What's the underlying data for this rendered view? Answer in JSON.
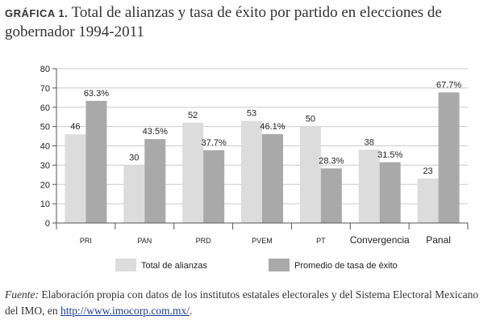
{
  "title_label": "GRÁFICA 1.",
  "title_text": "Total de alianzas y tasa de éxito por partido en elecciones de gobernador 1994-2011",
  "source": {
    "label": "Fuente:",
    "text_before": "Elaboración propia con datos de los institutos estatales electorales y del Sistema Electoral Mexicano del",
    "abbr": "IMO",
    "text_mid": ", en",
    "url": "http://www.imocorp.com.mx/",
    "text_after": "."
  },
  "colors": {
    "series1": "#dcdcdc",
    "series2": "#a9a9a9",
    "axis": "#555555",
    "grid": "#cccccc"
  },
  "chart_data": {
    "type": "bar",
    "categories": [
      "PRI",
      "PAN",
      "PRD",
      "PVEM",
      "PT",
      "Convergencia",
      "Panal"
    ],
    "series": [
      {
        "name": "Total de alianzas",
        "values": [
          46,
          30,
          52,
          53,
          50,
          38,
          23
        ],
        "labels": [
          "46",
          "30",
          "52",
          "53",
          "50",
          "38",
          "23"
        ]
      },
      {
        "name": "Promedio de tasa de éxito",
        "values": [
          63.3,
          43.5,
          37.7,
          46.1,
          28.3,
          31.5,
          67.7
        ],
        "labels": [
          "63.3%",
          "43.5%",
          "37.7%",
          "46.1%",
          "28.3%",
          "31.5%",
          "67.7%"
        ]
      }
    ],
    "ylim": [
      0,
      80
    ],
    "yticks": [
      0,
      10,
      20,
      30,
      40,
      50,
      60,
      70,
      80
    ],
    "grid": true,
    "legend_position": "bottom"
  }
}
